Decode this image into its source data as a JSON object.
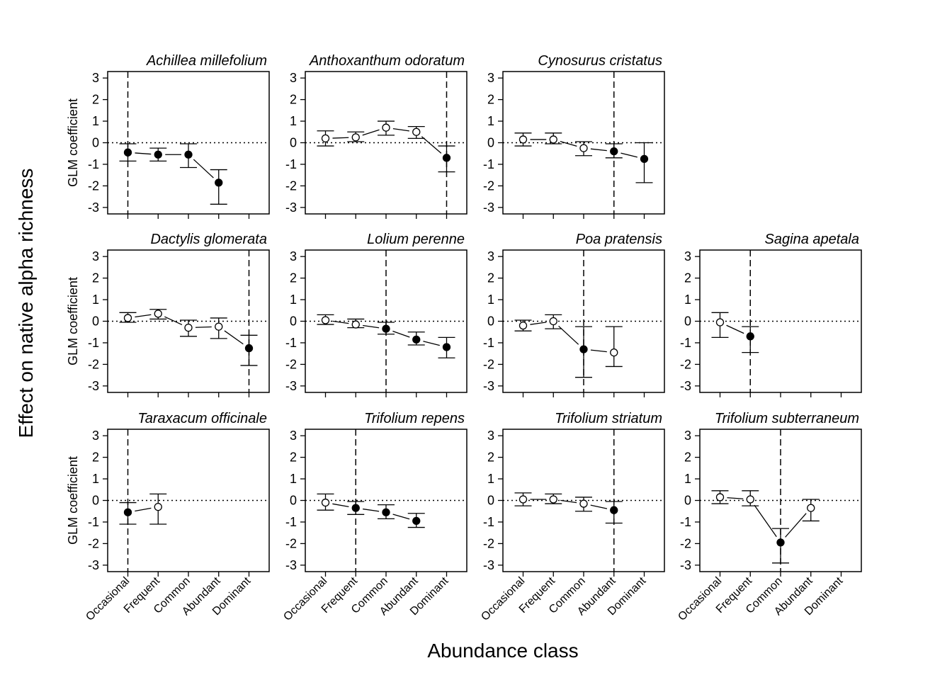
{
  "chart_data": {
    "type": "scatter",
    "xlabel": "Abundance class",
    "ylabel": "Effect on native alpha richness",
    "panel_ylabel": "GLM coefficient",
    "categories": [
      "Occasional",
      "Frequent",
      "Common",
      "Abundant",
      "Dominant"
    ],
    "ylim": [
      -3.3,
      3.3
    ],
    "yticks": [
      "3",
      "2",
      "1",
      "0",
      "-1",
      "-2",
      "-3"
    ],
    "panels": [
      {
        "species": "Achillea millefolium",
        "threshold": 0,
        "points": [
          {
            "x": 0,
            "y": -0.45,
            "lo": -0.85,
            "hi": -0.05,
            "filled": true
          },
          {
            "x": 1,
            "y": -0.55,
            "lo": -0.85,
            "hi": -0.25,
            "filled": true
          },
          {
            "x": 2,
            "y": -0.55,
            "lo": -1.15,
            "hi": -0.05,
            "filled": true
          },
          {
            "x": 3,
            "y": -1.85,
            "lo": -2.85,
            "hi": -1.25,
            "filled": true
          }
        ]
      },
      {
        "species": "Anthoxanthum odoratum",
        "threshold": 4,
        "points": [
          {
            "x": 0,
            "y": 0.2,
            "lo": -0.15,
            "hi": 0.55,
            "filled": false
          },
          {
            "x": 1,
            "y": 0.25,
            "lo": 0.05,
            "hi": 0.5,
            "filled": false
          },
          {
            "x": 2,
            "y": 0.7,
            "lo": 0.35,
            "hi": 1.0,
            "filled": false
          },
          {
            "x": 3,
            "y": 0.5,
            "lo": 0.2,
            "hi": 0.75,
            "filled": false
          },
          {
            "x": 4,
            "y": -0.7,
            "lo": -1.35,
            "hi": -0.15,
            "filled": true
          }
        ]
      },
      {
        "species": "Cynosurus cristatus",
        "threshold": 3,
        "points": [
          {
            "x": 0,
            "y": 0.15,
            "lo": -0.15,
            "hi": 0.45,
            "filled": false
          },
          {
            "x": 1,
            "y": 0.15,
            "lo": -0.05,
            "hi": 0.45,
            "filled": false
          },
          {
            "x": 2,
            "y": -0.25,
            "lo": -0.6,
            "hi": 0.05,
            "filled": false
          },
          {
            "x": 3,
            "y": -0.4,
            "lo": -0.7,
            "hi": -0.05,
            "filled": true
          },
          {
            "x": 4,
            "y": -0.75,
            "lo": -1.85,
            "hi": 0.0,
            "filled": true
          }
        ]
      },
      {
        "species": "Dactylis glomerata",
        "threshold": 4,
        "points": [
          {
            "x": 0,
            "y": 0.15,
            "lo": -0.05,
            "hi": 0.4,
            "filled": false
          },
          {
            "x": 1,
            "y": 0.35,
            "lo": 0.1,
            "hi": 0.55,
            "filled": false
          },
          {
            "x": 2,
            "y": -0.3,
            "lo": -0.7,
            "hi": 0.05,
            "filled": false
          },
          {
            "x": 3,
            "y": -0.25,
            "lo": -0.8,
            "hi": 0.15,
            "filled": false
          },
          {
            "x": 4,
            "y": -1.25,
            "lo": -2.05,
            "hi": -0.65,
            "filled": true
          }
        ]
      },
      {
        "species": "Lolium perenne",
        "threshold": 2,
        "points": [
          {
            "x": 0,
            "y": 0.05,
            "lo": -0.15,
            "hi": 0.3,
            "filled": false
          },
          {
            "x": 1,
            "y": -0.15,
            "lo": -0.3,
            "hi": 0.1,
            "filled": false
          },
          {
            "x": 2,
            "y": -0.35,
            "lo": -0.6,
            "hi": -0.05,
            "filled": true
          },
          {
            "x": 3,
            "y": -0.85,
            "lo": -1.1,
            "hi": -0.5,
            "filled": true
          },
          {
            "x": 4,
            "y": -1.2,
            "lo": -1.7,
            "hi": -0.75,
            "filled": true
          }
        ]
      },
      {
        "species": "Poa pratensis",
        "threshold": 2,
        "points": [
          {
            "x": 0,
            "y": -0.2,
            "lo": -0.45,
            "hi": 0.05,
            "filled": false
          },
          {
            "x": 1,
            "y": 0.0,
            "lo": -0.35,
            "hi": 0.3,
            "filled": false
          },
          {
            "x": 2,
            "y": -1.3,
            "lo": -2.6,
            "hi": -0.25,
            "filled": true
          },
          {
            "x": 3,
            "y": -1.45,
            "lo": -2.1,
            "hi": -0.25,
            "filled": false
          }
        ]
      },
      {
        "species": "Sagina apetala",
        "threshold": 1,
        "points": [
          {
            "x": 0,
            "y": -0.05,
            "lo": -0.75,
            "hi": 0.4,
            "filled": false
          },
          {
            "x": 1,
            "y": -0.7,
            "lo": -1.45,
            "hi": -0.25,
            "filled": true
          }
        ]
      },
      {
        "species": "Taraxacum officinale",
        "threshold": 0,
        "points": [
          {
            "x": 0,
            "y": -0.55,
            "lo": -1.1,
            "hi": -0.1,
            "filled": true
          },
          {
            "x": 1,
            "y": -0.3,
            "lo": -1.1,
            "hi": 0.3,
            "filled": false
          }
        ]
      },
      {
        "species": "Trifolium repens",
        "threshold": 1,
        "points": [
          {
            "x": 0,
            "y": -0.1,
            "lo": -0.45,
            "hi": 0.3,
            "filled": false
          },
          {
            "x": 1,
            "y": -0.35,
            "lo": -0.65,
            "hi": -0.05,
            "filled": true
          },
          {
            "x": 2,
            "y": -0.55,
            "lo": -0.85,
            "hi": -0.2,
            "filled": true
          },
          {
            "x": 3,
            "y": -0.95,
            "lo": -1.25,
            "hi": -0.6,
            "filled": true
          }
        ]
      },
      {
        "species": "Trifolium striatum",
        "threshold": 3,
        "points": [
          {
            "x": 0,
            "y": 0.05,
            "lo": -0.25,
            "hi": 0.35,
            "filled": false
          },
          {
            "x": 1,
            "y": 0.05,
            "lo": -0.15,
            "hi": 0.3,
            "filled": false
          },
          {
            "x": 2,
            "y": -0.15,
            "lo": -0.5,
            "hi": 0.15,
            "filled": false
          },
          {
            "x": 3,
            "y": -0.45,
            "lo": -1.05,
            "hi": -0.05,
            "filled": true
          }
        ]
      },
      {
        "species": "Trifolium subterraneum",
        "threshold": 2,
        "points": [
          {
            "x": 0,
            "y": 0.15,
            "lo": -0.15,
            "hi": 0.45,
            "filled": false
          },
          {
            "x": 1,
            "y": 0.05,
            "lo": -0.25,
            "hi": 0.45,
            "filled": false
          },
          {
            "x": 2,
            "y": -1.95,
            "lo": -2.9,
            "hi": -1.3,
            "filled": true
          },
          {
            "x": 3,
            "y": -0.35,
            "lo": -0.95,
            "hi": 0.05,
            "filled": false
          }
        ]
      }
    ]
  }
}
